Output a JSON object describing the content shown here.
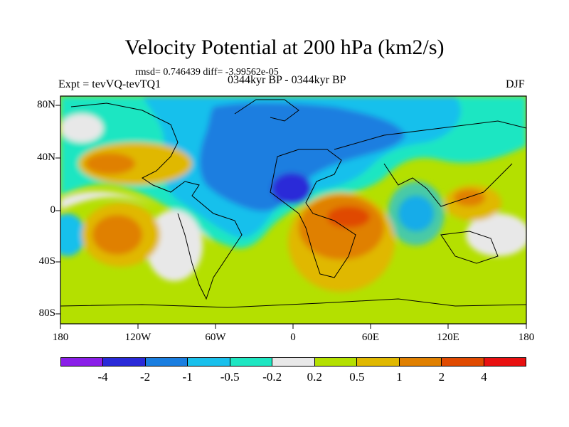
{
  "title": "Velocity Potential at 200 hPa (km2/s)",
  "stats": "rmsd= 0.746439 diff= -3.99562e-05",
  "expt": "Expt = tevVQ-tevTQ1",
  "period": "0344kyr BP - 0344kyr BP",
  "season": "DJF",
  "axes": {
    "lat_labels": [
      "80N",
      "40N",
      "0",
      "40S",
      "80S"
    ],
    "lon_labels": [
      "180",
      "120W",
      "60W",
      "0",
      "60E",
      "120E",
      "180"
    ]
  },
  "colorbar": {
    "labels": [
      "-4",
      "-2",
      "-1",
      "-0.5",
      "-0.2",
      "0.2",
      "0.5",
      "1",
      "2",
      "4"
    ],
    "colors": [
      "#8a1fe8",
      "#2a2ad8",
      "#1a7ee0",
      "#19c0ec",
      "#1ee6c2",
      "#e8e8e8",
      "#b4e000",
      "#e0b800",
      "#e08000",
      "#e04a00",
      "#e81010"
    ]
  },
  "palette": {
    "neg4": "#2a2ad8",
    "neg2": "#1a7ee0",
    "neg1": "#19c0ec",
    "neg05": "#1ee6c2",
    "zero": "#e8e8e8",
    "pos05": "#b4e000",
    "pos1": "#e0b800",
    "pos2": "#e08000",
    "pos4": "#e04a00"
  }
}
